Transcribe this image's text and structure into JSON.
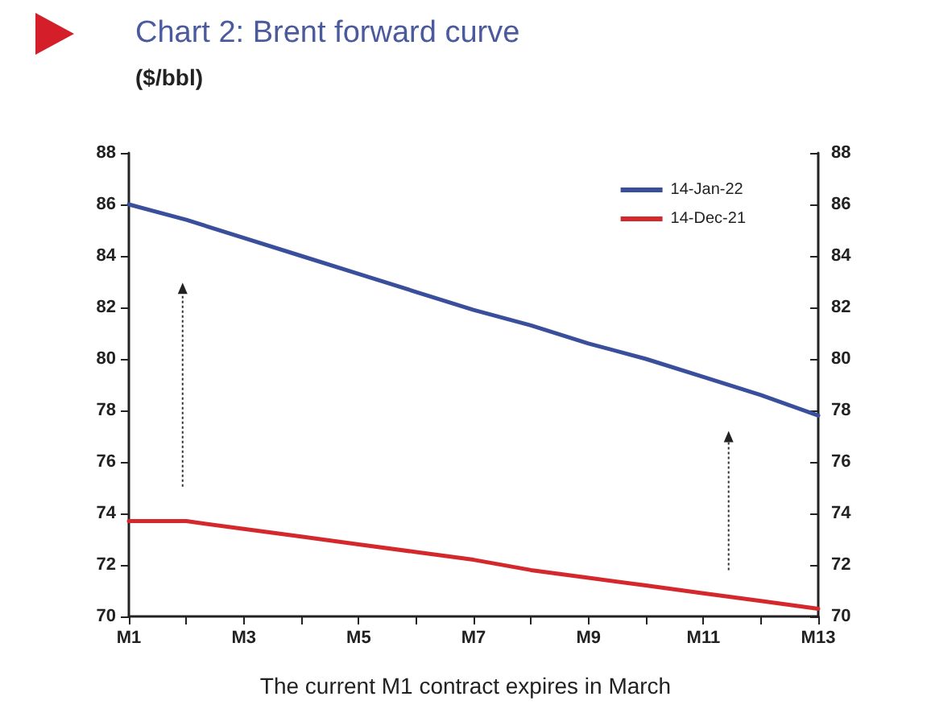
{
  "chart_data": {
    "type": "line",
    "title": "Chart 2: Brent forward curve",
    "ylabel": "($/bbl)",
    "annotations": [
      "The current M1 contract expires in March"
    ],
    "categories": [
      "M1",
      null,
      "M3",
      null,
      "M5",
      null,
      "M7",
      null,
      "M9",
      null,
      "M11",
      null,
      "M13"
    ],
    "series": [
      {
        "name": "14-Jan-22",
        "color": "#3a4f9c",
        "values": [
          86.0,
          85.4,
          84.7,
          84.0,
          83.3,
          82.6,
          81.9,
          81.3,
          80.6,
          80.0,
          79.3,
          78.6,
          77.8
        ]
      },
      {
        "name": "14-Dec-21",
        "color": "#d4282c",
        "values": [
          73.7,
          73.7,
          73.4,
          73.1,
          72.8,
          72.5,
          72.2,
          71.8,
          71.5,
          71.2,
          70.9,
          70.6,
          70.3
        ]
      }
    ],
    "ylim": [
      70,
      88
    ],
    "yticks": [
      70,
      72,
      74,
      76,
      78,
      80,
      82,
      84,
      86,
      88
    ],
    "y2lim": [
      70,
      88
    ],
    "y2ticks": [
      70,
      72,
      74,
      76,
      78,
      80,
      82,
      84,
      86,
      88
    ],
    "legend": "top right",
    "grid": false,
    "marker": "none",
    "line_style": "solid"
  }
}
